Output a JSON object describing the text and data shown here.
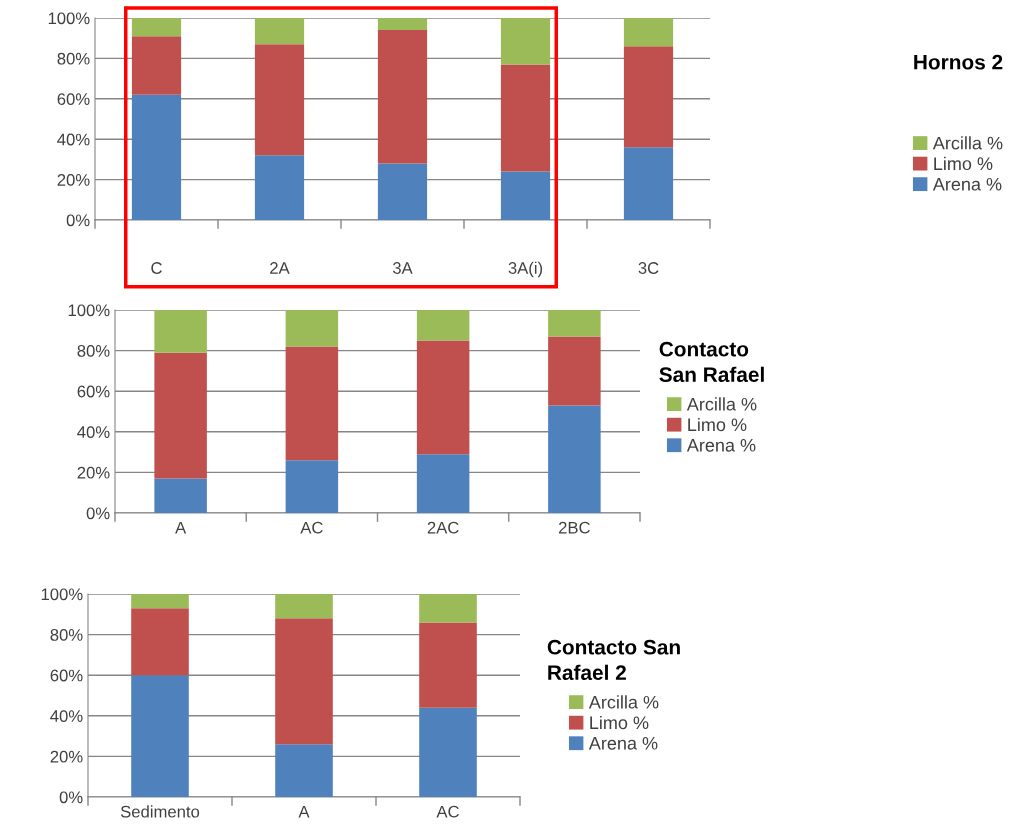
{
  "chart_data": [
    {
      "type": "bar",
      "legend_title": "Hornos 2",
      "categories": [
        "C",
        "2A",
        "3A",
        "3A(i)",
        "3C"
      ],
      "stacked": true,
      "grid": "y",
      "legend": "right",
      "ylim": [
        0,
        100
      ],
      "yticks": [
        {
          "value": 0,
          "label": "0%"
        },
        {
          "value": 20,
          "label": "20%"
        },
        {
          "value": 40,
          "label": "40%"
        },
        {
          "value": 60,
          "label": "60%"
        },
        {
          "value": 80,
          "label": "80%"
        },
        {
          "value": 100,
          "label": "100%"
        }
      ],
      "series": [
        {
          "name": "Arena %",
          "color": "#4f81bd",
          "values": [
            62,
            32,
            28,
            24,
            36
          ]
        },
        {
          "name": "Limo %",
          "color": "#c0504d",
          "values": [
            29,
            55,
            66,
            53,
            50
          ]
        },
        {
          "name": "Arcilla %",
          "color": "#9bbb59",
          "values": [
            9,
            13,
            6,
            23,
            14
          ]
        }
      ]
    },
    {
      "type": "bar",
      "legend_title": "Contacto San Rafael",
      "categories": [
        "A",
        "AC",
        "2AC",
        "2BC"
      ],
      "stacked": true,
      "grid": "y",
      "legend": "right",
      "ylim": [
        0,
        100
      ],
      "yticks": [
        {
          "value": 0,
          "label": "0%"
        },
        {
          "value": 20,
          "label": "20%"
        },
        {
          "value": 40,
          "label": "40%"
        },
        {
          "value": 60,
          "label": "60%"
        },
        {
          "value": 80,
          "label": "80%"
        },
        {
          "value": 100,
          "label": "100%"
        }
      ],
      "series": [
        {
          "name": "Arena %",
          "color": "#4f81bd",
          "values": [
            17,
            26,
            29,
            53
          ]
        },
        {
          "name": "Limo %",
          "color": "#c0504d",
          "values": [
            62,
            56,
            56,
            34
          ]
        },
        {
          "name": "Arcilla %",
          "color": "#9bbb59",
          "values": [
            21,
            18,
            15,
            13
          ]
        }
      ]
    },
    {
      "type": "bar",
      "legend_title": "Contacto San Rafael 2",
      "categories": [
        "Sedimento",
        "A",
        "AC"
      ],
      "stacked": true,
      "grid": "y",
      "legend": "right",
      "ylim": [
        0,
        100
      ],
      "yticks": [
        {
          "value": 0,
          "label": "0%"
        },
        {
          "value": 20,
          "label": "20%"
        },
        {
          "value": 40,
          "label": "40%"
        },
        {
          "value": 60,
          "label": "60%"
        },
        {
          "value": 80,
          "label": "80%"
        },
        {
          "value": 100,
          "label": "100%"
        }
      ],
      "series": [
        {
          "name": "Arena %",
          "color": "#4f81bd",
          "values": [
            60,
            26,
            44
          ]
        },
        {
          "name": "Limo %",
          "color": "#c0504d",
          "values": [
            33,
            62,
            42
          ]
        },
        {
          "name": "Arcilla %",
          "color": "#9bbb59",
          "values": [
            7,
            12,
            14
          ]
        }
      ]
    }
  ]
}
